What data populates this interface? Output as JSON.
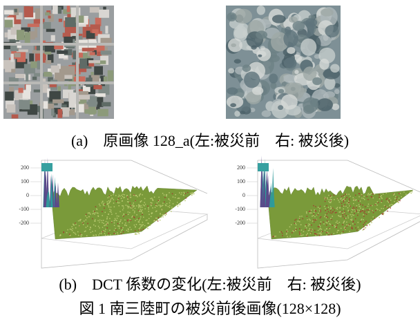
{
  "figure": {
    "subfigure_a": {
      "caption": "(a)　原画像 128_a(左:被災前　右: 被災後)"
    },
    "subfigure_b": {
      "caption": "(b)　DCT 係数の変化(左:被災前　右: 被災後)",
      "plots": [
        {
          "ticks": [
            "200",
            "100",
            "0",
            "-100",
            "-200"
          ]
        },
        {
          "ticks": [
            "200",
            "100",
            "0",
            "-100",
            "-200"
          ]
        }
      ]
    },
    "caption": "図 1 南三陸町の被災前後画像(128×128)"
  }
}
